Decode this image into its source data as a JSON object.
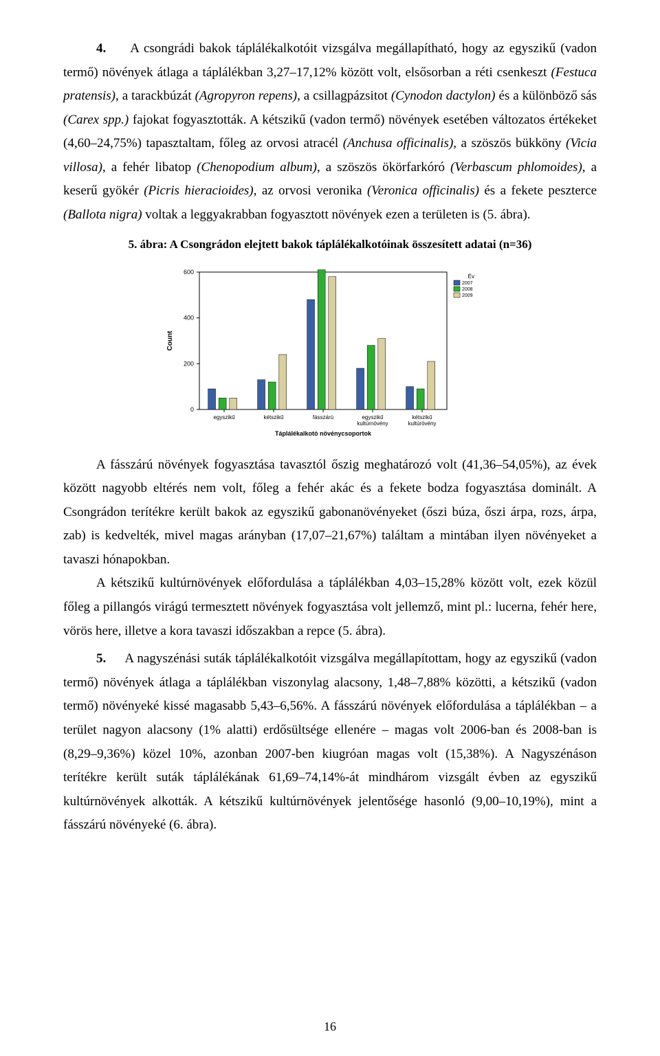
{
  "para1_num": "4.",
  "para1_a": "A csongrádi bakok táplálékalkotóit vizsgálva megállapítható, hogy az egyszikű (vadon termő) növények átlaga a táplálékban 3,27–17,12% között volt, elsősorban a  réti csenkeszt ",
  "para1_i1": "(Festuca pratensis)",
  "para1_b": ", a tarackbúzát ",
  "para1_i2": "(Agropyron repens)",
  "para1_c": ", a csillagpázsitot ",
  "para1_i3": "(Cynodon dactylon)",
  "para1_d": " és a különböző sás ",
  "para1_i4": "(Carex spp.)",
  "para1_e": " fajokat fogyasztották. A kétszikű (vadon termő) növények esetében változatos értékeket (4,60–24,75%) tapasztaltam, főleg az orvosi atracél ",
  "para1_i5": "(Anchusa officinalis)",
  "para1_f": ", a szöszös bükköny ",
  "para1_i6": "(Vicia villosa)",
  "para1_g": ", a fehér libatop ",
  "para1_i7": "(Chenopodium album)",
  "para1_h": ", a szöszös ökörfarkóró ",
  "para1_i8": "(Verbascum phlomoides)",
  "para1_j": ", a keserű gyökér ",
  "para1_i9": "(Picris hieracioides)",
  "para1_k": ", az orvosi veronika ",
  "para1_i10": "(Veronica officinalis)",
  "para1_l": " és a fekete peszterce ",
  "para1_i11": "(Ballota nigra)",
  "para1_m": " voltak a leggyakrabban fogyasztott növények ezen a területen is (5. ábra).",
  "caption": "5. ábra: A Csongrádon elejtett bakok táplálékalkotóinak összesített adatai (n=36)",
  "chart": {
    "type": "grouped-bar",
    "background_color": "#ffffff",
    "plot_bg": "#ffffff",
    "border_color": "#000000",
    "yaxis": {
      "label": "Count",
      "min": 0,
      "max": 600,
      "ticks": [
        0,
        200,
        400,
        600
      ],
      "fontsize": 9,
      "label_fontsize": 10
    },
    "xaxis": {
      "label": "Táplálékalkotó növénycsoportok",
      "fontsize": 8,
      "label_fontsize": 9
    },
    "legend": {
      "title": "Év",
      "items": [
        {
          "label": "2007",
          "color": "#3b5fa3"
        },
        {
          "label": "2008",
          "color": "#2fae33"
        },
        {
          "label": "2009",
          "color": "#d9cfa0"
        }
      ],
      "title_fontsize": 8,
      "item_fontsize": 7
    },
    "categories": [
      "egyszikű",
      "kétszikű",
      "fásszárú",
      "egyszikű\nkultúrnövény",
      "kétszikű\nkultúrövény"
    ],
    "series": [
      {
        "name": "2007",
        "color": "#3b5fa3",
        "values": [
          90,
          130,
          480,
          180,
          100
        ]
      },
      {
        "name": "2008",
        "color": "#2fae33",
        "values": [
          50,
          120,
          610,
          280,
          90
        ]
      },
      {
        "name": "2009",
        "color": "#d9cfa0",
        "values": [
          50,
          240,
          580,
          310,
          210
        ]
      }
    ],
    "bar_group_gap": 0.35,
    "bar_width": 0.7
  },
  "para2": "A fásszárú növények fogyasztása tavasztól őszig meghatározó volt (41,36–54,05%), az évek között nagyobb eltérés nem volt, főleg a fehér akác és a fekete bodza fogyasztása dominált. A Csongrádon terítékre került bakok az egyszikű gabonanövényeket (őszi búza, őszi árpa, rozs, árpa, zab) is kedvelték, mivel magas arányban (17,07–21,67%) találtam a mintában ilyen növényeket a tavaszi hónapokban.",
  "para3": "A kétszikű kultúrnövények előfordulása a táplálékban 4,03–15,28% között volt, ezek közül főleg a pillangós virágú termesztett növények fogyasztása volt jellemző, mint pl.: lucerna, fehér here, vörös here, illetve a kora tavaszi időszakban a repce (5. ábra).",
  "para4_num": "5.",
  "para4": "A nagyszénási suták táplálékalkotóit vizsgálva megállapítottam, hogy az egyszikű (vadon termő) növények átlaga a táplálékban viszonylag alacsony, 1,48–7,88% közötti, a kétszikű (vadon termő) növényeké kissé magasabb 5,43–6,56%. A fásszárú növények előfordulása a táplálékban – a terület nagyon alacsony (1% alatti) erdősültsége ellenére – magas volt 2006-ban és 2008-ban is (8,29–9,36%) közel 10%, azonban 2007-ben kiugróan magas volt (15,38%). A Nagyszénáson terítékre került suták táplálékának 61,69–74,14%-át mindhárom vizsgált évben az egyszikű kultúrnövények alkották. A kétszikű kultúrnövények jelentősége hasonló (9,00–10,19%), mint a fásszárú növényeké (6. ábra).",
  "pagenum": "16"
}
